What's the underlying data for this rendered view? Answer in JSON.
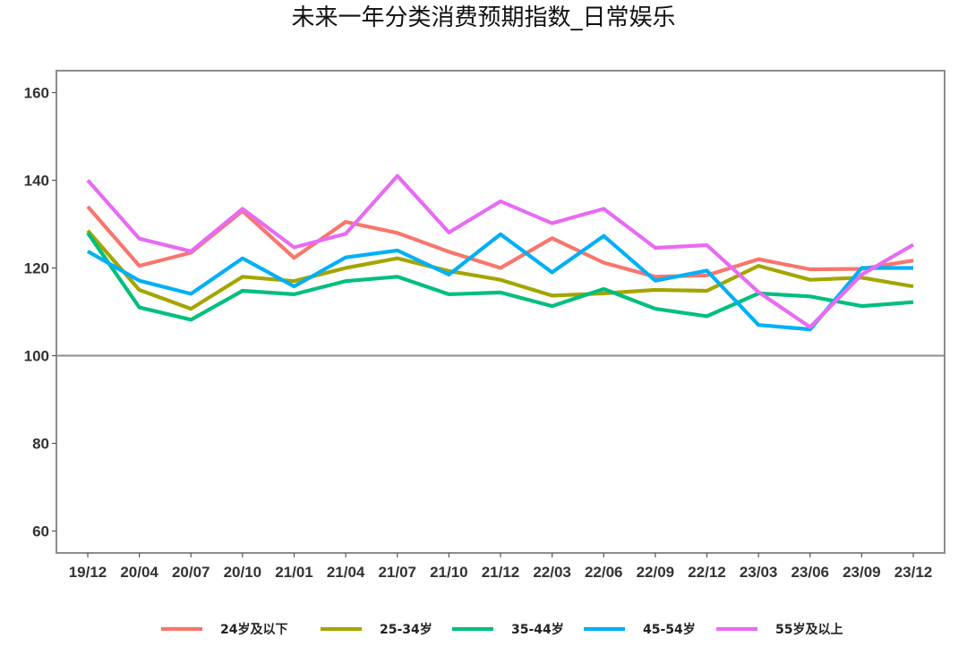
{
  "chart_data": {
    "type": "line",
    "title": "未来一年分类消费预期指数_日常娱乐",
    "xlabel": "",
    "ylabel": "",
    "categories": [
      "19/12",
      "20/04",
      "20/07",
      "20/10",
      "21/01",
      "21/04",
      "21/07",
      "21/10",
      "21/12",
      "22/03",
      "22/06",
      "22/09",
      "22/12",
      "23/03",
      "23/06",
      "23/09",
      "23/12"
    ],
    "ylim": [
      55,
      165
    ],
    "yticks": [
      60,
      80,
      100,
      120,
      140,
      160
    ],
    "reference_line": 100,
    "grid": false,
    "legend_position": "bottom",
    "series": [
      {
        "name": "24岁及以下",
        "color": "#F8766D",
        "values": [
          134,
          120.5,
          123.5,
          133,
          122.3,
          130.5,
          128,
          123.7,
          120,
          126.8,
          121.2,
          118,
          118.3,
          122,
          119.7,
          119.8,
          121.7
        ]
      },
      {
        "name": "25-34岁",
        "color": "#A3A500",
        "values": [
          128.5,
          115,
          110.7,
          118,
          117,
          120,
          122.2,
          119.3,
          117.3,
          113.7,
          114.2,
          115,
          114.8,
          120.5,
          117.3,
          117.8,
          115.8
        ]
      },
      {
        "name": "35-44岁",
        "color": "#00BF7D",
        "values": [
          128,
          111,
          108.2,
          114.8,
          114,
          117,
          118,
          114,
          114.4,
          111.3,
          115.2,
          110.7,
          109,
          114.2,
          113.5,
          111.3,
          112.2
        ]
      },
      {
        "name": "45-54岁",
        "color": "#00B0F6",
        "values": [
          123.8,
          117.1,
          114.1,
          122.2,
          115.8,
          122.4,
          124,
          118.5,
          127.7,
          119,
          127.3,
          117.1,
          119.4,
          107,
          106,
          120,
          120
        ]
      },
      {
        "name": "55岁及以上",
        "color": "#E76BF3",
        "values": [
          140,
          126.7,
          123.8,
          133.5,
          124.7,
          127.8,
          141,
          128.1,
          135.2,
          130.2,
          133.5,
          124.6,
          125.2,
          114.5,
          106.5,
          118.5,
          125.3
        ]
      }
    ]
  }
}
